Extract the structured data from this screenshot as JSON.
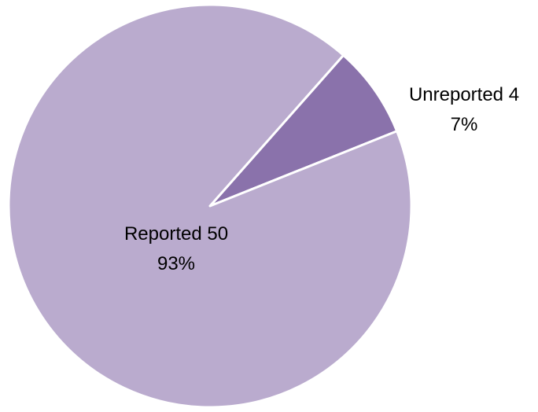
{
  "chart_data": {
    "type": "pie",
    "title": "",
    "start_angle_deg": -48.5,
    "direction": "clockwise",
    "slices": [
      {
        "label": "Unreported",
        "value": 4,
        "percent_label": "7%",
        "name_label": "Unreported 4",
        "color": "#8A72AB"
      },
      {
        "label": "Reported",
        "value": 50,
        "percent_label": "93%",
        "name_label": "Reported 50",
        "color": "#BAABCE"
      }
    ],
    "slice_border_color": "#FFFFFF",
    "legend": "none"
  }
}
